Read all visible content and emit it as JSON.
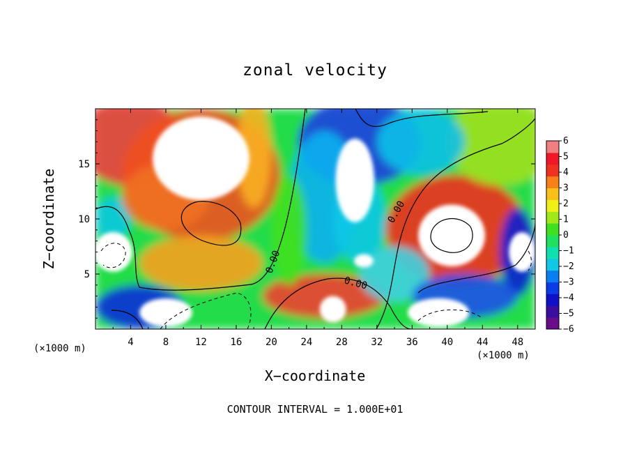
{
  "chart_data": {
    "type": "heatmap",
    "title": "zonal velocity",
    "xlabel": "X−coordinate",
    "ylabel": "Z−coordinate",
    "x_unit_label": "(×1000 m)",
    "x_unit_label_right": "(×1000 m)",
    "xlim": [
      0,
      50
    ],
    "ylim": [
      0,
      20
    ],
    "x_ticks": [
      "4",
      "8",
      "12",
      "16",
      "20",
      "24",
      "28",
      "32",
      "36",
      "40",
      "44",
      "48"
    ],
    "x_tick_values": [
      4,
      8,
      12,
      16,
      20,
      24,
      28,
      32,
      36,
      40,
      44,
      48
    ],
    "y_ticks": [
      "5",
      "10",
      "15"
    ],
    "y_tick_values": [
      5,
      10,
      15
    ],
    "colorbar": {
      "range": [
        -6,
        6
      ],
      "ticks": [
        "6",
        "5",
        "4",
        "3",
        "2",
        "1",
        "0",
        "−1",
        "−2",
        "−3",
        "−4",
        "−5",
        "−6"
      ],
      "tick_values": [
        6,
        5,
        4,
        3,
        2,
        1,
        0,
        -1,
        -2,
        -3,
        -4,
        -5,
        -6
      ],
      "colors": [
        "#6a0d8a",
        "#3c0ea0",
        "#1010c8",
        "#0a3ce8",
        "#0a7ef0",
        "#10c8e6",
        "#10e0b0",
        "#20e060",
        "#40e020",
        "#a0e818",
        "#f0f018",
        "#f8c018",
        "#f88018",
        "#f03020",
        "#f01828",
        "#f08080"
      ]
    },
    "contour_labels": [
      {
        "text": "0.00",
        "x": 20.5,
        "z": 6.0
      },
      {
        "text": "0.00",
        "x": 29.5,
        "z": 3.9
      },
      {
        "text": "0.00",
        "x": 34.5,
        "z": 10.5
      }
    ],
    "contour_note": "CONTOUR INTERVAL = 1.000E+01"
  }
}
